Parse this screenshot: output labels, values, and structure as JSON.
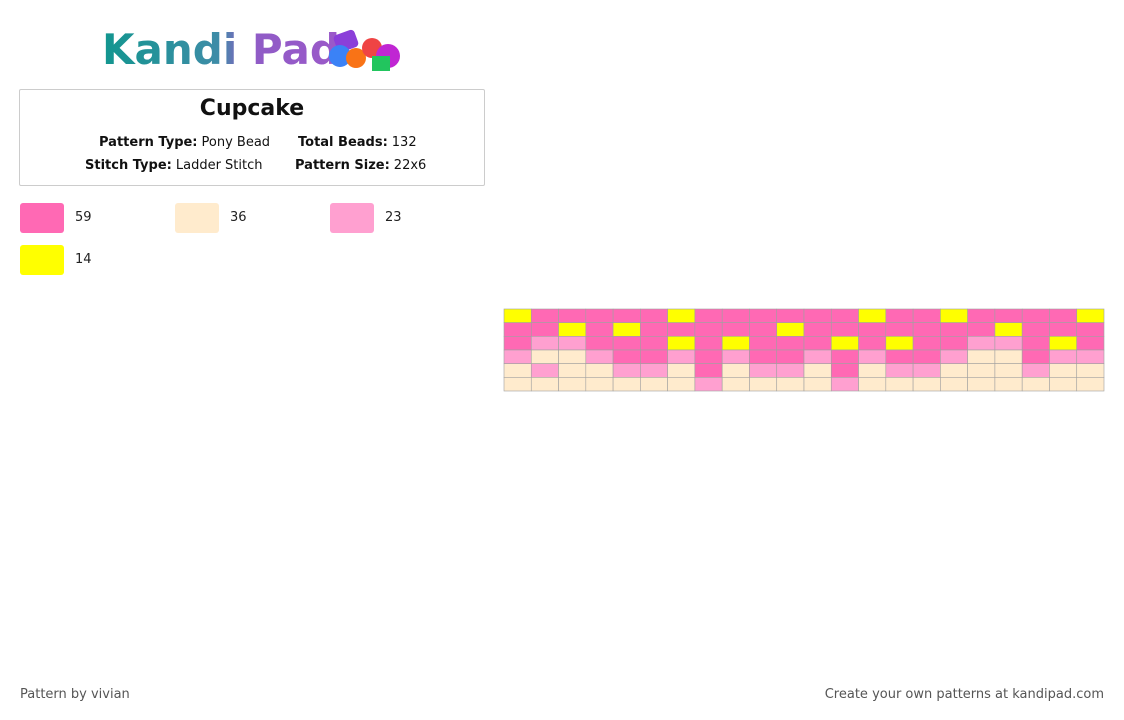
{
  "logo": "Kandi Pad",
  "title": "Cupcake",
  "info": [
    {
      "label": "Pattern Type:",
      "value": "Pony Bead"
    },
    {
      "label": "Total Beads:",
      "value": "132"
    },
    {
      "label": "Stitch Type:",
      "value": "Ladder Stitch"
    },
    {
      "label": "Pattern Size:",
      "value": "22x6"
    }
  ],
  "colors": [
    {
      "color": "#ff69b4",
      "count": 59
    },
    {
      "color": "#ffebcd",
      "count": 36
    },
    {
      "color": "#ffa0d0",
      "count": 23
    },
    {
      "color": "#ffff00",
      "count": 14
    }
  ],
  "grid": [
    [
      3,
      0,
      0,
      0,
      0,
      0,
      3,
      0,
      0,
      0,
      0,
      0,
      0,
      3,
      0,
      0,
      3,
      0,
      0,
      0,
      0,
      3
    ],
    [
      0,
      0,
      3,
      0,
      3,
      0,
      0,
      0,
      0,
      0,
      3,
      0,
      0,
      0,
      0,
      0,
      0,
      0,
      3,
      0,
      0,
      0
    ],
    [
      0,
      2,
      2,
      0,
      0,
      0,
      3,
      0,
      3,
      0,
      0,
      0,
      3,
      0,
      3,
      0,
      0,
      2,
      2,
      0,
      3,
      0
    ],
    [
      2,
      1,
      1,
      2,
      0,
      0,
      2,
      0,
      2,
      0,
      0,
      2,
      0,
      2,
      0,
      0,
      2,
      1,
      1,
      0,
      2,
      2
    ],
    [
      1,
      2,
      1,
      1,
      2,
      2,
      1,
      0,
      1,
      2,
      2,
      1,
      0,
      1,
      2,
      2,
      1,
      1,
      1,
      2,
      1,
      1
    ],
    [
      1,
      1,
      1,
      1,
      1,
      1,
      1,
      2,
      1,
      1,
      1,
      1,
      2,
      1,
      1,
      1,
      1,
      1,
      1,
      1,
      1,
      1
    ]
  ],
  "footer": {
    "left": "Pattern by vivian",
    "right": "Create your own patterns at kandipad.com"
  }
}
